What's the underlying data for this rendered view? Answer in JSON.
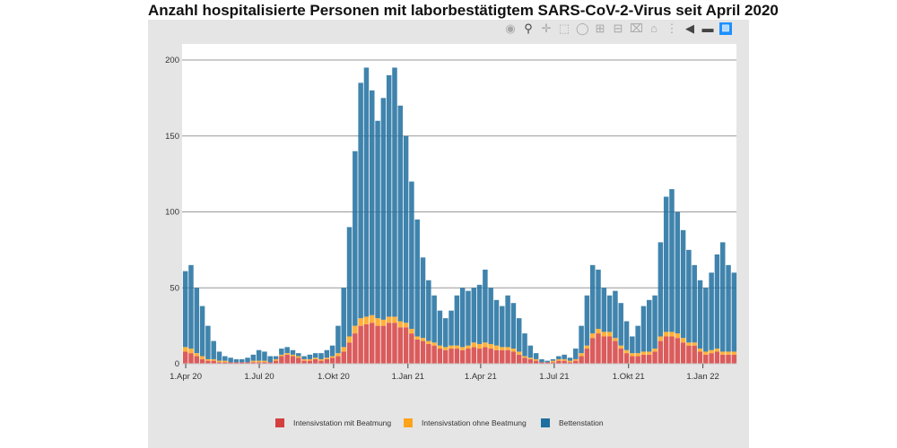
{
  "title": "Anzahl hospitalisierte Personen mit laborbestätigtem SARS-CoV-2-Virus seit April 2020",
  "toolbar": {
    "icons": [
      "camera-icon",
      "zoom-icon",
      "pan-icon",
      "box-select-icon",
      "lasso-select-icon",
      "zoom-in-icon",
      "zoom-out-icon",
      "autoscale-icon",
      "reset-axes-icon",
      "spike-lines-icon",
      "hover-closest-icon",
      "hover-compare-icon",
      "plotly-logo-icon"
    ]
  },
  "chart_data": {
    "type": "bar",
    "stacked": true,
    "title": "Anzahl hospitalisierte Personen mit laborbestätigtem SARS-CoV-2-Virus seit April 2020",
    "xlabel": "",
    "ylabel": "",
    "ylim": [
      0,
      200
    ],
    "xlim": [
      "2020-03-31",
      "2022-02-15"
    ],
    "grid": true,
    "legend_position": "bottom",
    "y_ticks": [
      0,
      50,
      100,
      150,
      200
    ],
    "x_ticks": [
      {
        "date": "2020-04-01",
        "label": "1.Apr 20"
      },
      {
        "date": "2020-07-01",
        "label": "1.Jul 20"
      },
      {
        "date": "2020-10-01",
        "label": "1.Okt 20"
      },
      {
        "date": "2021-01-01",
        "label": "1.Jan 21"
      },
      {
        "date": "2021-04-01",
        "label": "1.Apr 21"
      },
      {
        "date": "2021-07-01",
        "label": "1.Jul 21"
      },
      {
        "date": "2021-10-01",
        "label": "1.Okt 21"
      },
      {
        "date": "2022-01-01",
        "label": "1.Jan 22"
      }
    ],
    "x": [
      "2020-04-01",
      "2020-04-08",
      "2020-04-15",
      "2020-04-22",
      "2020-04-29",
      "2020-05-06",
      "2020-05-13",
      "2020-05-20",
      "2020-05-27",
      "2020-06-03",
      "2020-06-10",
      "2020-06-17",
      "2020-06-24",
      "2020-07-01",
      "2020-07-08",
      "2020-07-15",
      "2020-07-22",
      "2020-07-29",
      "2020-08-05",
      "2020-08-12",
      "2020-08-19",
      "2020-08-26",
      "2020-09-02",
      "2020-09-09",
      "2020-09-16",
      "2020-09-23",
      "2020-09-30",
      "2020-10-07",
      "2020-10-14",
      "2020-10-21",
      "2020-10-28",
      "2020-11-04",
      "2020-11-11",
      "2020-11-18",
      "2020-11-25",
      "2020-12-02",
      "2020-12-09",
      "2020-12-16",
      "2020-12-23",
      "2020-12-30",
      "2021-01-06",
      "2021-01-13",
      "2021-01-20",
      "2021-01-27",
      "2021-02-03",
      "2021-02-10",
      "2021-02-17",
      "2021-02-24",
      "2021-03-03",
      "2021-03-10",
      "2021-03-17",
      "2021-03-24",
      "2021-03-31",
      "2021-04-07",
      "2021-04-14",
      "2021-04-21",
      "2021-04-28",
      "2021-05-05",
      "2021-05-12",
      "2021-05-19",
      "2021-05-26",
      "2021-06-02",
      "2021-06-09",
      "2021-06-16",
      "2021-06-23",
      "2021-06-30",
      "2021-07-07",
      "2021-07-14",
      "2021-07-21",
      "2021-07-28",
      "2021-08-04",
      "2021-08-11",
      "2021-08-18",
      "2021-08-25",
      "2021-09-01",
      "2021-09-08",
      "2021-09-15",
      "2021-09-22",
      "2021-09-29",
      "2021-10-06",
      "2021-10-13",
      "2021-10-20",
      "2021-10-27",
      "2021-11-03",
      "2021-11-10",
      "2021-11-17",
      "2021-11-24",
      "2021-12-01",
      "2021-12-08",
      "2021-12-15",
      "2021-12-22",
      "2021-12-29",
      "2022-01-05",
      "2022-01-12",
      "2022-01-19",
      "2022-01-26",
      "2022-02-02",
      "2022-02-09"
    ],
    "series": [
      {
        "name": "Intensivstation mit Beatmung",
        "color": "#d43f3f",
        "values": [
          8,
          7,
          5,
          3,
          2,
          2,
          1,
          1,
          1,
          1,
          1,
          1,
          1,
          1,
          1,
          1,
          2,
          5,
          6,
          5,
          4,
          2,
          2,
          3,
          2,
          3,
          4,
          5,
          8,
          14,
          20,
          25,
          26,
          27,
          25,
          25,
          27,
          27,
          24,
          24,
          20,
          16,
          15,
          13,
          12,
          10,
          9,
          10,
          10,
          9,
          10,
          11,
          10,
          11,
          10,
          9,
          9,
          9,
          8,
          6,
          4,
          3,
          2,
          1,
          1,
          1,
          2,
          2,
          1,
          2,
          5,
          10,
          17,
          20,
          18,
          18,
          15,
          10,
          7,
          5,
          5,
          6,
          6,
          8,
          15,
          18,
          18,
          17,
          14,
          12,
          12,
          8,
          6,
          7,
          8,
          6,
          6,
          6
        ]
      },
      {
        "name": "Intensivstation ohne Beatmung",
        "color": "#ffa31a",
        "values": [
          3,
          3,
          2,
          2,
          1,
          1,
          1,
          1,
          0,
          0,
          0,
          0,
          1,
          1,
          1,
          0,
          1,
          1,
          1,
          1,
          1,
          1,
          1,
          1,
          1,
          1,
          1,
          2,
          3,
          4,
          5,
          5,
          5,
          5,
          5,
          4,
          4,
          4,
          4,
          3,
          3,
          2,
          2,
          2,
          2,
          2,
          2,
          2,
          2,
          2,
          2,
          3,
          3,
          3,
          3,
          3,
          2,
          2,
          2,
          2,
          1,
          1,
          1,
          0,
          0,
          1,
          1,
          1,
          1,
          1,
          2,
          2,
          3,
          3,
          3,
          3,
          2,
          2,
          2,
          2,
          2,
          2,
          2,
          2,
          3,
          3,
          3,
          3,
          3,
          2,
          2,
          2,
          2,
          2,
          2,
          2,
          2,
          2
        ]
      },
      {
        "name": "Bettenstation",
        "color": "#1f6f9f",
        "values": [
          50,
          55,
          43,
          33,
          22,
          12,
          6,
          3,
          3,
          2,
          2,
          3,
          4,
          7,
          6,
          4,
          2,
          4,
          4,
          3,
          2,
          2,
          3,
          3,
          4,
          5,
          7,
          18,
          39,
          72,
          115,
          155,
          164,
          148,
          130,
          146,
          159,
          164,
          142,
          123,
          97,
          77,
          53,
          40,
          31,
          23,
          19,
          23,
          33,
          39,
          36,
          36,
          39,
          48,
          37,
          30,
          27,
          34,
          30,
          22,
          15,
          8,
          4,
          2,
          1,
          1,
          2,
          3,
          2,
          7,
          18,
          33,
          45,
          39,
          29,
          24,
          31,
          28,
          19,
          11,
          18,
          30,
          34,
          35,
          62,
          89,
          94,
          80,
          71,
          61,
          51,
          45,
          42,
          51,
          62,
          72,
          57,
          52
        ]
      }
    ]
  }
}
